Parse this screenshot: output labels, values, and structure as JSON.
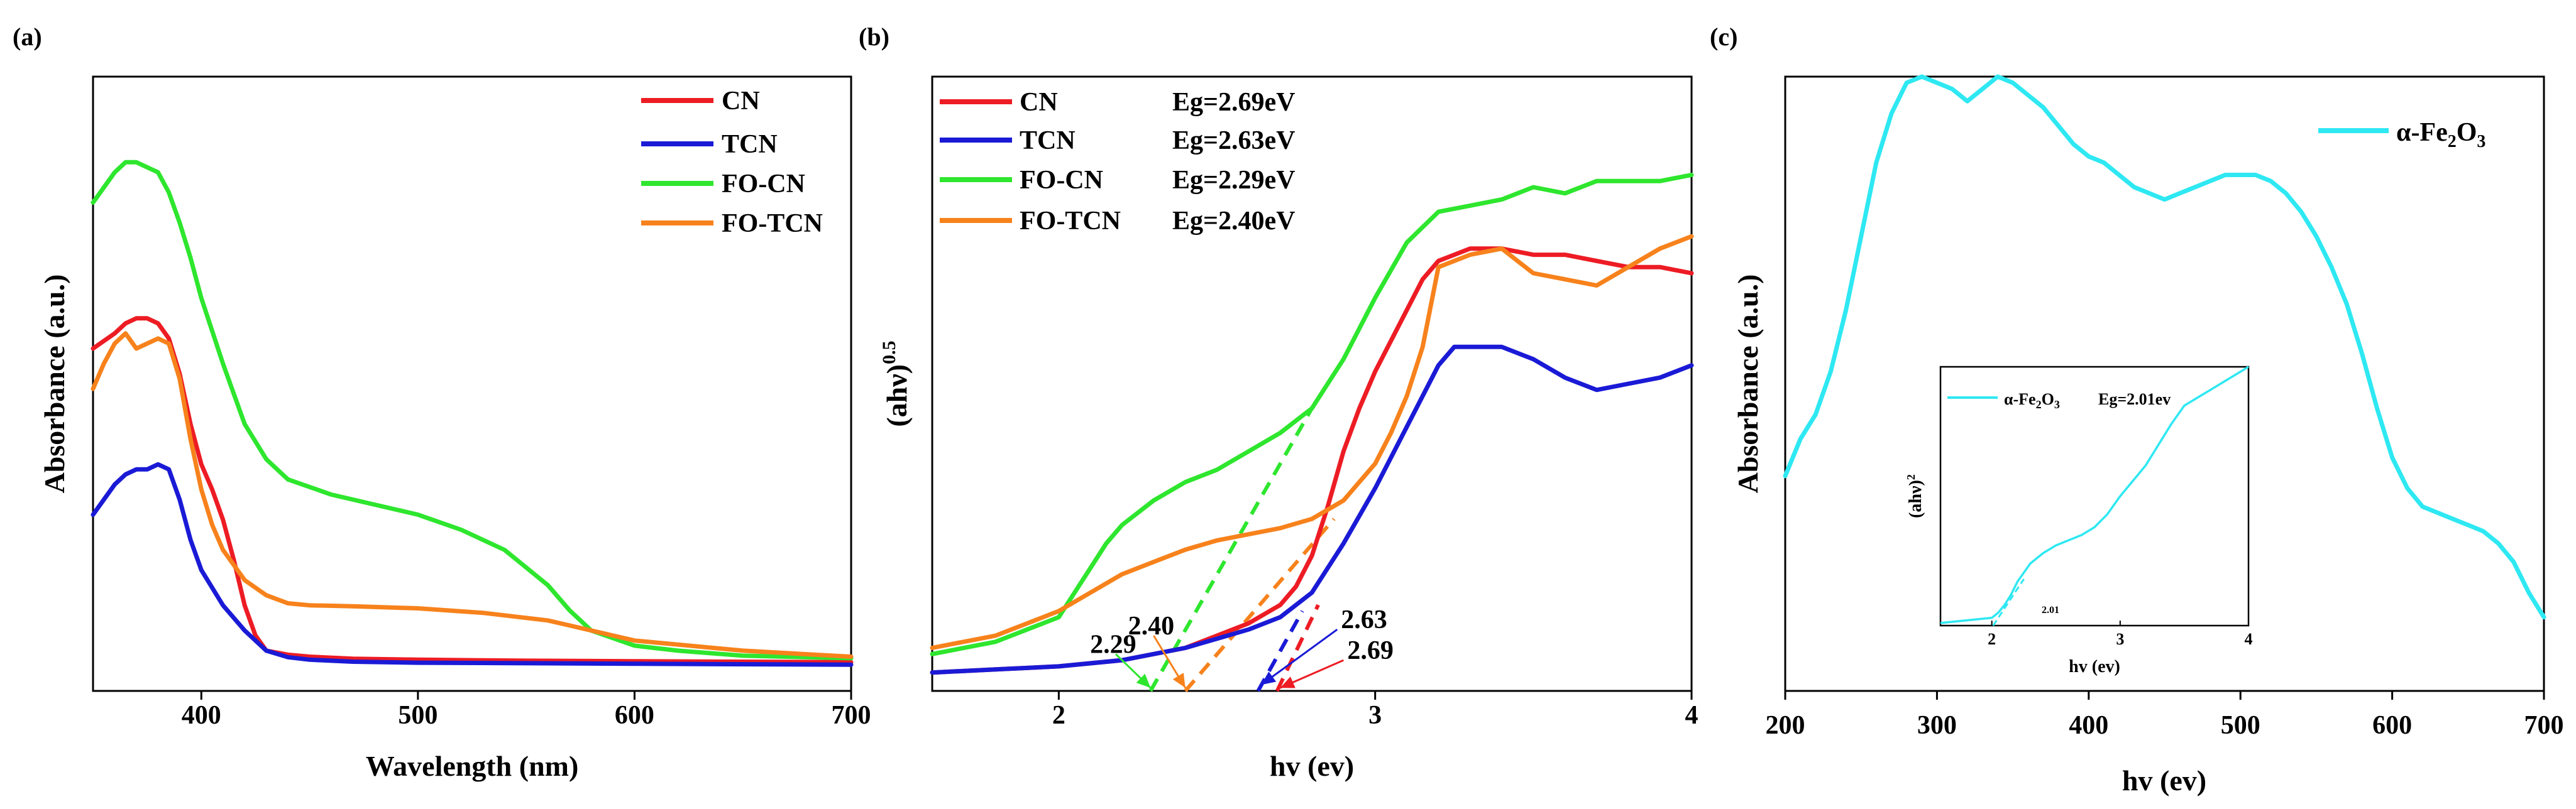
{
  "colors": {
    "CN": "#ed1c24",
    "TCN": "#1a1ad6",
    "FO-CN": "#2ee62e",
    "FO-TCN": "#f7821c",
    "Fe": "#2ee8f2"
  },
  "chart_data": [
    {
      "id": "a",
      "panel_label": "(a)",
      "type": "line",
      "xlabel": "Wavelength (nm)",
      "ylabel": "Absorbance (a.u.)",
      "xlim": [
        350,
        700
      ],
      "ylim": [
        0,
        1.22
      ],
      "xticks": [
        400,
        500,
        600,
        700
      ],
      "yticks": [],
      "grid": false,
      "legend_position": "top-right",
      "series": [
        {
          "name": "CN",
          "color_key": "CN",
          "x": [
            350,
            360,
            365,
            370,
            375,
            380,
            385,
            390,
            395,
            400,
            405,
            410,
            415,
            420,
            425,
            430,
            440,
            450,
            470,
            500,
            550,
            600,
            650,
            700
          ],
          "y": [
            0.68,
            0.71,
            0.73,
            0.74,
            0.74,
            0.73,
            0.7,
            0.63,
            0.53,
            0.45,
            0.4,
            0.34,
            0.26,
            0.17,
            0.11,
            0.08,
            0.072,
            0.068,
            0.064,
            0.062,
            0.06,
            0.059,
            0.058,
            0.057
          ]
        },
        {
          "name": "TCN",
          "color_key": "TCN",
          "x": [
            350,
            355,
            360,
            365,
            370,
            375,
            380,
            385,
            390,
            395,
            400,
            410,
            420,
            430,
            440,
            450,
            470,
            500,
            600,
            700
          ],
          "y": [
            0.35,
            0.38,
            0.41,
            0.43,
            0.44,
            0.44,
            0.45,
            0.44,
            0.38,
            0.3,
            0.24,
            0.17,
            0.12,
            0.08,
            0.067,
            0.062,
            0.058,
            0.056,
            0.054,
            0.052
          ]
        },
        {
          "name": "FO-CN",
          "color_key": "FO-CN",
          "x": [
            350,
            355,
            360,
            365,
            370,
            375,
            380,
            385,
            390,
            395,
            400,
            410,
            420,
            430,
            440,
            460,
            480,
            500,
            520,
            540,
            560,
            570,
            580,
            600,
            620,
            650,
            700
          ],
          "y": [
            0.97,
            1.0,
            1.03,
            1.05,
            1.05,
            1.04,
            1.03,
            0.99,
            0.93,
            0.86,
            0.78,
            0.65,
            0.53,
            0.46,
            0.42,
            0.39,
            0.37,
            0.35,
            0.32,
            0.28,
            0.21,
            0.16,
            0.12,
            0.09,
            0.08,
            0.07,
            0.065
          ]
        },
        {
          "name": "FO-TCN",
          "color_key": "FO-TCN",
          "x": [
            350,
            355,
            360,
            365,
            370,
            375,
            380,
            385,
            390,
            395,
            400,
            405,
            410,
            415,
            420,
            430,
            440,
            450,
            470,
            500,
            530,
            560,
            600,
            650,
            700
          ],
          "y": [
            0.6,
            0.65,
            0.69,
            0.71,
            0.68,
            0.69,
            0.7,
            0.69,
            0.62,
            0.5,
            0.4,
            0.33,
            0.28,
            0.25,
            0.22,
            0.19,
            0.174,
            0.17,
            0.168,
            0.164,
            0.155,
            0.14,
            0.1,
            0.08,
            0.068
          ]
        }
      ]
    },
    {
      "id": "b",
      "panel_label": "(b)",
      "type": "line",
      "xlabel": "hv (ev)",
      "ylabel_base": "(ahν)",
      "ylabel_sup": "0.5",
      "xlim": [
        1.6,
        4.0
      ],
      "ylim": [
        0,
        1.0
      ],
      "xticks": [
        2,
        3,
        4
      ],
      "yticks": [],
      "grid": false,
      "legend_position": "top-left",
      "legend_eg": [
        "Eg=2.69eV",
        "Eg=2.63eV",
        "Eg=2.29eV",
        "Eg=2.40eV"
      ],
      "series": [
        {
          "name": "CN",
          "color_key": "CN",
          "eg_label": "Eg=2.69eV",
          "x": [
            1.6,
            1.8,
            2.0,
            2.2,
            2.4,
            2.5,
            2.6,
            2.7,
            2.75,
            2.8,
            2.85,
            2.9,
            2.95,
            3.0,
            3.1,
            3.15,
            3.2,
            3.25,
            3.3,
            3.4,
            3.5,
            3.6,
            3.7,
            3.8,
            3.9,
            4.0
          ],
          "y": [
            0.03,
            0.035,
            0.04,
            0.05,
            0.07,
            0.09,
            0.11,
            0.14,
            0.17,
            0.22,
            0.3,
            0.39,
            0.46,
            0.52,
            0.62,
            0.67,
            0.7,
            0.71,
            0.72,
            0.72,
            0.71,
            0.71,
            0.7,
            0.69,
            0.69,
            0.68
          ]
        },
        {
          "name": "TCN",
          "color_key": "TCN",
          "eg_label": "Eg=2.63eV",
          "x": [
            1.6,
            1.8,
            2.0,
            2.2,
            2.4,
            2.5,
            2.6,
            2.7,
            2.8,
            2.9,
            3.0,
            3.1,
            3.2,
            3.25,
            3.3,
            3.4,
            3.5,
            3.6,
            3.7,
            3.8,
            3.9,
            4.0
          ],
          "y": [
            0.03,
            0.035,
            0.04,
            0.05,
            0.07,
            0.085,
            0.1,
            0.12,
            0.16,
            0.24,
            0.33,
            0.43,
            0.53,
            0.56,
            0.56,
            0.56,
            0.54,
            0.51,
            0.49,
            0.5,
            0.51,
            0.53
          ]
        },
        {
          "name": "FO-CN",
          "color_key": "FO-CN",
          "eg_label": "Eg=2.29eV",
          "x": [
            1.6,
            1.8,
            2.0,
            2.05,
            2.1,
            2.15,
            2.2,
            2.3,
            2.4,
            2.5,
            2.6,
            2.7,
            2.8,
            2.9,
            3.0,
            3.1,
            3.2,
            3.3,
            3.4,
            3.5,
            3.6,
            3.7,
            3.8,
            3.9,
            4.0
          ],
          "y": [
            0.06,
            0.08,
            0.12,
            0.16,
            0.2,
            0.24,
            0.27,
            0.31,
            0.34,
            0.36,
            0.39,
            0.42,
            0.46,
            0.54,
            0.64,
            0.73,
            0.78,
            0.79,
            0.8,
            0.82,
            0.81,
            0.83,
            0.83,
            0.83,
            0.84
          ]
        },
        {
          "name": "FO-TCN",
          "color_key": "FO-TCN",
          "eg_label": "Eg=2.40eV",
          "x": [
            1.6,
            1.8,
            2.0,
            2.1,
            2.2,
            2.3,
            2.4,
            2.5,
            2.6,
            2.7,
            2.8,
            2.9,
            3.0,
            3.05,
            3.1,
            3.15,
            3.2,
            3.3,
            3.4,
            3.5,
            3.6,
            3.7,
            3.8,
            3.9,
            4.0
          ],
          "y": [
            0.07,
            0.09,
            0.13,
            0.16,
            0.19,
            0.21,
            0.23,
            0.245,
            0.255,
            0.265,
            0.28,
            0.31,
            0.37,
            0.42,
            0.48,
            0.56,
            0.69,
            0.71,
            0.72,
            0.68,
            0.67,
            0.66,
            0.69,
            0.72,
            0.74
          ]
        }
      ],
      "tangents": [
        {
          "color_key": "FO-CN",
          "x": [
            2.29,
            2.8
          ],
          "y": [
            0,
            0.46
          ]
        },
        {
          "color_key": "FO-TCN",
          "x": [
            2.4,
            2.87
          ],
          "y": [
            0,
            0.28
          ]
        },
        {
          "color_key": "TCN",
          "x": [
            2.63,
            2.77
          ],
          "y": [
            0,
            0.13
          ]
        },
        {
          "color_key": "CN",
          "x": [
            2.69,
            2.82
          ],
          "y": [
            0,
            0.14
          ]
        }
      ],
      "annotations": [
        {
          "text": "2.29",
          "x": 2.29,
          "color_key": "FO-CN",
          "from": [
            2.18,
            0.06
          ],
          "to": [
            2.29,
            0.005
          ]
        },
        {
          "text": "2.40",
          "x": 2.4,
          "color_key": "FO-TCN",
          "from": [
            2.3,
            0.09
          ],
          "to": [
            2.4,
            0.005
          ]
        },
        {
          "text": "2.63",
          "x": 2.63,
          "color_key": "TCN",
          "from": [
            2.88,
            0.1
          ],
          "to": [
            2.64,
            0.01
          ]
        },
        {
          "text": "2.69",
          "x": 2.69,
          "color_key": "CN",
          "from": [
            2.9,
            0.05
          ],
          "to": [
            2.7,
            0.005
          ]
        }
      ]
    },
    {
      "id": "c",
      "panel_label": "(c)",
      "type": "line",
      "xlabel": "hv (ev)",
      "ylabel": "Absorbance (a.u.)",
      "xlim": [
        200,
        700
      ],
      "ylim": [
        0,
        1.0
      ],
      "xticks": [
        200,
        300,
        400,
        500,
        600,
        700
      ],
      "yticks": [],
      "grid": false,
      "legend_position": "top-right",
      "series": [
        {
          "name_base": "α-Fe",
          "name_sub": "2",
          "name_mid": "O",
          "name_sub2": "3",
          "color_key": "Fe",
          "x": [
            200,
            210,
            220,
            230,
            240,
            250,
            260,
            270,
            280,
            290,
            300,
            310,
            320,
            330,
            340,
            350,
            360,
            370,
            380,
            390,
            400,
            410,
            420,
            430,
            440,
            450,
            460,
            470,
            480,
            490,
            500,
            510,
            520,
            530,
            540,
            550,
            560,
            570,
            580,
            590,
            600,
            610,
            620,
            630,
            640,
            650,
            660,
            670,
            680,
            690,
            700
          ],
          "y": [
            0.35,
            0.41,
            0.45,
            0.52,
            0.62,
            0.74,
            0.86,
            0.94,
            0.99,
            1.0,
            0.99,
            0.98,
            0.96,
            0.98,
            1.0,
            0.99,
            0.97,
            0.95,
            0.92,
            0.89,
            0.87,
            0.86,
            0.84,
            0.82,
            0.81,
            0.8,
            0.81,
            0.82,
            0.83,
            0.84,
            0.84,
            0.84,
            0.83,
            0.81,
            0.78,
            0.74,
            0.69,
            0.63,
            0.55,
            0.46,
            0.38,
            0.33,
            0.3,
            0.29,
            0.28,
            0.27,
            0.26,
            0.24,
            0.21,
            0.16,
            0.12
          ]
        }
      ],
      "inset": {
        "xlabel": "hv (ev)",
        "ylabel_base": "(ahν)",
        "ylabel_sup": "2",
        "xlim": [
          1.6,
          4.0
        ],
        "ylim": [
          0,
          1.0
        ],
        "xticks": [
          2,
          3,
          4
        ],
        "legend_name_base": "α-Fe",
        "legend_name_sub": "2",
        "legend_name_mid": "O",
        "legend_name_sub2": "3",
        "legend_eg": "Eg=2.01ev",
        "annotation": "2.01",
        "x": [
          1.6,
          1.8,
          2.0,
          2.05,
          2.1,
          2.15,
          2.2,
          2.3,
          2.4,
          2.5,
          2.6,
          2.7,
          2.8,
          2.9,
          3.0,
          3.1,
          3.2,
          3.3,
          3.4,
          3.5,
          3.6,
          3.7,
          3.8,
          3.9,
          4.0
        ],
        "y": [
          0.01,
          0.02,
          0.03,
          0.05,
          0.08,
          0.12,
          0.17,
          0.24,
          0.28,
          0.31,
          0.33,
          0.35,
          0.38,
          0.43,
          0.5,
          0.56,
          0.62,
          0.7,
          0.78,
          0.85,
          0.88,
          0.91,
          0.94,
          0.97,
          1.0
        ],
        "tangent": {
          "x": [
            2.01,
            2.25
          ],
          "y": [
            0,
            0.18
          ]
        }
      }
    }
  ]
}
